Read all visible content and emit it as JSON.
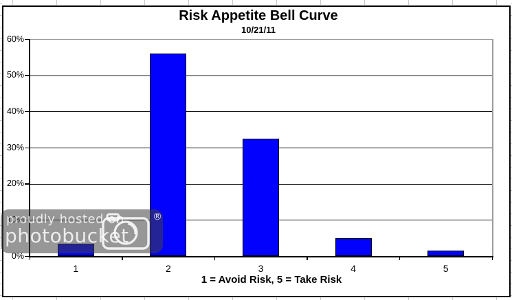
{
  "chart_data": {
    "type": "bar",
    "title": "Risk Appetite Bell Curve",
    "subtitle": "10/21/11",
    "categories": [
      "1",
      "2",
      "3",
      "4",
      "5"
    ],
    "values": [
      3.5,
      56,
      32.5,
      5,
      1.5
    ],
    "unit": "%",
    "xlabel": "1 = Avoid Risk, 5 = Take Risk",
    "ylabel": "",
    "ylim": [
      0,
      60
    ],
    "yticks": [
      0,
      10,
      20,
      30,
      40,
      50,
      60
    ],
    "ytick_labels": [
      "0%",
      "10%",
      "20%",
      "30%",
      "40%",
      "50%",
      "60%"
    ],
    "grid": true,
    "legend": false,
    "bar_color": "#0101fd",
    "bar_border_color": "#000000",
    "gridline_color": "#111111",
    "plot_border_color": "#9c9c9c",
    "axis_color": "#000000"
  },
  "watermark": {
    "line1": "proudly hosted on",
    "line2": "photobucket",
    "registered_mark": "®"
  }
}
